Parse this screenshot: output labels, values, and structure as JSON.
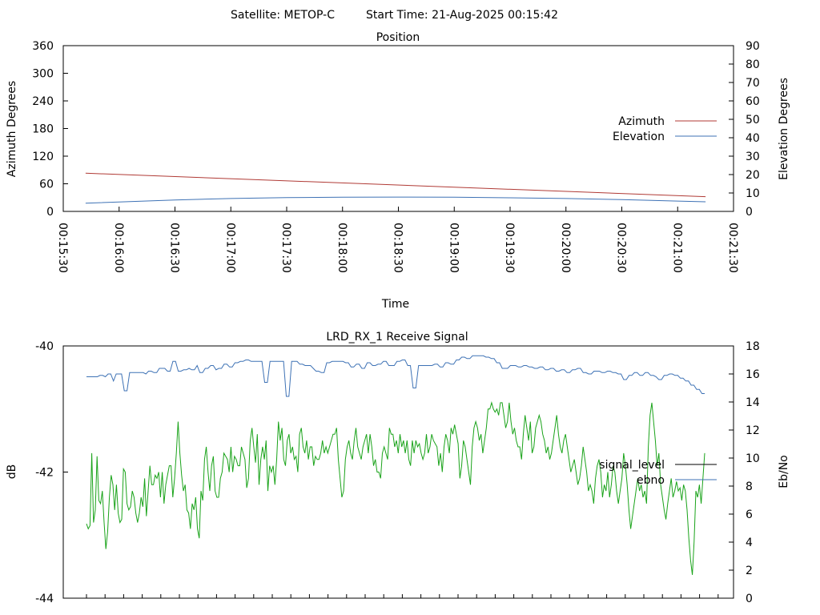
{
  "header": {
    "satellite": "Satellite: METOP-C",
    "start_time": "Start Time: 21-Aug-2025 00:15:42"
  },
  "colors": {
    "azimuth": "#b03a35",
    "elevation": "#3e72b5",
    "signal_level": "#000000",
    "ebno_line": "#3e72b5",
    "signal_series": "#1aa31a"
  },
  "chart_data": [
    {
      "type": "line",
      "title": "Position",
      "xlabel": "Time",
      "ylabel": "Azimuth Degrees",
      "y2label": "Elevation Degrees",
      "ylim": [
        0,
        360
      ],
      "y2lim": [
        0,
        90
      ],
      "yticks": [
        "0",
        "60",
        "120",
        "180",
        "240",
        "300",
        "360"
      ],
      "y2ticks": [
        "0",
        "10",
        "20",
        "30",
        "40",
        "50",
        "60",
        "70",
        "80",
        "90"
      ],
      "xticks": [
        "00:15:30",
        "00:16:00",
        "00:16:30",
        "00:17:00",
        "00:17:30",
        "00:18:00",
        "00:18:30",
        "00:19:00",
        "00:19:30",
        "00:20:00",
        "00:20:30",
        "00:21:00",
        "00:21:30"
      ],
      "xlim_seconds": [
        930,
        1290
      ],
      "legend_position": "right",
      "series": [
        {
          "name": "Azimuth",
          "axis": "y",
          "x": [
            "00:15:42",
            "00:21:15"
          ],
          "values": [
            83,
            32
          ]
        },
        {
          "name": "Elevation",
          "axis": "y2",
          "x": [
            "00:15:42",
            "00:16:30",
            "00:17:00",
            "00:17:30",
            "00:18:00",
            "00:18:30",
            "00:19:00",
            "00:19:30",
            "00:20:00",
            "00:20:30",
            "00:21:00",
            "00:21:15"
          ],
          "values": [
            4.5,
            6.2,
            7.0,
            7.5,
            7.7,
            7.8,
            7.7,
            7.4,
            7.0,
            6.4,
            5.6,
            5.2
          ]
        }
      ]
    },
    {
      "type": "line",
      "title": "LRD_RX_1 Receive Signal",
      "ylabel": "dB",
      "y2label": "Eb/No",
      "ylim": [
        -44,
        -40
      ],
      "y2lim": [
        0,
        18
      ],
      "yticks": [
        "-44",
        "-42",
        "-40"
      ],
      "y2ticks": [
        "0",
        "2",
        "4",
        "6",
        "8",
        "10",
        "12",
        "14",
        "16",
        "18"
      ],
      "legend_position": "right",
      "legend": [
        {
          "name": "signal_level"
        },
        {
          "name": "ebno"
        }
      ],
      "series": [
        {
          "name": "ebno",
          "axis": "y2",
          "values": [
            15.8,
            15.8,
            15.8,
            15.8,
            15.8,
            15.9,
            15.9,
            15.8,
            16.0,
            16.0,
            15.5,
            16.0,
            16.0,
            16.0,
            14.8,
            14.8,
            16.1,
            16.1,
            16.1,
            16.1,
            16.1,
            16.1,
            16.0,
            16.2,
            16.2,
            16.1,
            16.1,
            16.4,
            16.4,
            16.4,
            16.2,
            16.2,
            16.9,
            16.9,
            16.2,
            16.2,
            16.3,
            16.3,
            16.4,
            16.3,
            16.3,
            16.6,
            16.1,
            16.1,
            16.4,
            16.4,
            16.6,
            16.6,
            16.3,
            16.4,
            16.4,
            16.7,
            16.7,
            16.5,
            16.5,
            16.8,
            16.8,
            16.9,
            16.9,
            17.0,
            17.0,
            16.9,
            16.9,
            16.9,
            16.9,
            16.9,
            15.4,
            15.4,
            16.9,
            16.9,
            16.9,
            16.9,
            16.9,
            16.9,
            14.4,
            14.4,
            16.9,
            16.9,
            16.9,
            16.7,
            16.7,
            16.6,
            16.6,
            16.6,
            16.4,
            16.2,
            16.2,
            16.1,
            16.1,
            16.8,
            16.8,
            16.9,
            16.9,
            16.9,
            16.9,
            16.9,
            16.8,
            16.8,
            16.5,
            16.5,
            16.7,
            16.7,
            16.4,
            16.4,
            16.8,
            16.8,
            16.6,
            16.6,
            16.7,
            16.7,
            16.9,
            16.9,
            16.6,
            16.6,
            16.6,
            16.9,
            16.9,
            17.0,
            17.0,
            16.6,
            16.6,
            15.0,
            15.0,
            16.6,
            16.6,
            16.6,
            16.6,
            16.6,
            16.6,
            16.7,
            16.7,
            16.5,
            16.5,
            16.8,
            16.8,
            16.7,
            16.7,
            17.0,
            17.0,
            17.2,
            17.2,
            17.1,
            17.1,
            17.3,
            17.3,
            17.3,
            17.3,
            17.3,
            17.2,
            17.2,
            17.1,
            17.1,
            16.8,
            16.8,
            16.4,
            16.4,
            16.4,
            16.6,
            16.6,
            16.6,
            16.5,
            16.5,
            16.6,
            16.6,
            16.5,
            16.5,
            16.4,
            16.4,
            16.5,
            16.5,
            16.3,
            16.3,
            16.4,
            16.4,
            16.2,
            16.2,
            16.3,
            16.3,
            16.1,
            16.1,
            16.3,
            16.3,
            16.4,
            16.4,
            16.1,
            16.1,
            16.0,
            16.0,
            16.2,
            16.2,
            16.2,
            16.1,
            16.1,
            16.2,
            16.2,
            16.1,
            16.1,
            16.0,
            16.0,
            15.6,
            15.6,
            15.9,
            15.9,
            16.1,
            16.1,
            15.9,
            15.9,
            16.1,
            16.1,
            15.9,
            15.9,
            15.8,
            15.6,
            15.6,
            15.9,
            15.9,
            16.0,
            16.0,
            15.9,
            15.9,
            15.7,
            15.7,
            15.5,
            15.5,
            15.2,
            15.2,
            14.9,
            14.9,
            14.6,
            14.6
          ]
        },
        {
          "name": "signal",
          "axis": "y",
          "values": [
            -42.82,
            -42.9,
            -42.85,
            -41.7,
            -42.8,
            -42.6,
            -41.75,
            -42.45,
            -42.5,
            -42.3,
            -42.8,
            -43.22,
            -42.95,
            -42.4,
            -42.05,
            -42.2,
            -42.6,
            -42.2,
            -42.65,
            -42.8,
            -42.75,
            -41.95,
            -42.0,
            -42.5,
            -42.6,
            -42.55,
            -42.3,
            -42.4,
            -42.65,
            -42.8,
            -42.65,
            -42.4,
            -42.55,
            -42.1,
            -42.7,
            -42.3,
            -41.9,
            -42.2,
            -42.2,
            -42.05,
            -42.1,
            -42.0,
            -42.4,
            -42.0,
            -42.5,
            -42.2,
            -42.05,
            -41.9,
            -41.9,
            -42.4,
            -42.1,
            -41.7,
            -41.2,
            -41.7,
            -42.05,
            -42.3,
            -42.2,
            -42.6,
            -42.65,
            -42.9,
            -42.5,
            -42.6,
            -42.4,
            -42.9,
            -43.05,
            -42.3,
            -42.45,
            -41.8,
            -41.6,
            -42.0,
            -42.3,
            -41.9,
            -41.75,
            -42.3,
            -42.4,
            -42.4,
            -42.1,
            -42.0,
            -41.7,
            -41.75,
            -41.8,
            -42.0,
            -41.6,
            -42.0,
            -41.75,
            -41.8,
            -41.9,
            -41.9,
            -41.6,
            -41.7,
            -41.8,
            -42.25,
            -42.1,
            -41.5,
            -41.3,
            -41.6,
            -41.85,
            -41.4,
            -42.2,
            -41.8,
            -41.6,
            -41.8,
            -41.5,
            -42.3,
            -41.9,
            -42.0,
            -41.9,
            -42.2,
            -41.8,
            -41.2,
            -41.5,
            -41.3,
            -41.8,
            -41.9,
            -41.5,
            -41.4,
            -41.7,
            -41.6,
            -41.8,
            -41.75,
            -42.0,
            -41.4,
            -41.3,
            -41.6,
            -41.7,
            -41.5,
            -41.8,
            -41.6,
            -41.6,
            -41.9,
            -41.75,
            -41.8,
            -41.8,
            -41.7,
            -41.5,
            -41.7,
            -41.6,
            -41.7,
            -41.6,
            -41.5,
            -41.4,
            -41.4,
            -41.3,
            -41.8,
            -42.1,
            -42.4,
            -42.3,
            -41.8,
            -41.6,
            -41.5,
            -41.7,
            -41.8,
            -41.5,
            -41.3,
            -41.6,
            -41.7,
            -41.8,
            -41.6,
            -41.5,
            -41.4,
            -41.7,
            -41.4,
            -41.6,
            -41.9,
            -41.8,
            -42.0,
            -42.0,
            -42.1,
            -41.7,
            -41.6,
            -41.7,
            -41.8,
            -41.3,
            -41.4,
            -41.4,
            -41.6,
            -41.5,
            -41.7,
            -41.4,
            -41.6,
            -41.5,
            -41.7,
            -41.5,
            -41.8,
            -41.9,
            -41.5,
            -41.7,
            -41.5,
            -41.6,
            -41.55,
            -41.7,
            -41.8,
            -41.7,
            -41.4,
            -41.7,
            -41.6,
            -41.4,
            -41.5,
            -41.55,
            -41.6,
            -41.9,
            -41.7,
            -42.0,
            -41.6,
            -41.4,
            -41.5,
            -41.7,
            -41.3,
            -41.4,
            -41.25,
            -41.4,
            -41.55,
            -42.1,
            -41.9,
            -41.5,
            -41.6,
            -41.8,
            -42.0,
            -42.2,
            -41.6,
            -41.3,
            -41.2,
            -41.3,
            -41.5,
            -41.4,
            -41.7,
            -41.5,
            -41.3,
            -41.0,
            -41.0,
            -40.9,
            -41.0,
            -41.05,
            -41.0,
            -41.1,
            -40.9,
            -40.9,
            -41.1,
            -41.3,
            -41.2,
            -40.9,
            -41.2,
            -41.4,
            -41.3,
            -41.5,
            -41.6,
            -41.6,
            -41.8,
            -41.4,
            -41.1,
            -41.3,
            -41.5,
            -41.2,
            -41.7,
            -41.6,
            -41.3,
            -41.2,
            -41.1,
            -41.2,
            -41.4,
            -41.5,
            -41.7,
            -41.6,
            -41.8,
            -41.7,
            -41.5,
            -41.3,
            -41.1,
            -41.4,
            -41.6,
            -41.7,
            -41.5,
            -41.4,
            -41.6,
            -41.8,
            -42.0,
            -41.9,
            -41.8,
            -42.0,
            -42.2,
            -42.1,
            -41.9,
            -41.6,
            -41.8,
            -42.0,
            -42.3,
            -42.2,
            -42.3,
            -42.5,
            -42.1,
            -41.9,
            -41.8,
            -42.0,
            -42.4,
            -42.2,
            -42.3,
            -42.0,
            -42.4,
            -42.2,
            -41.9,
            -42.0,
            -42.3,
            -42.5,
            -42.3,
            -42.1,
            -41.7,
            -41.9,
            -42.2,
            -42.6,
            -42.9,
            -42.7,
            -42.5,
            -42.3,
            -42.1,
            -42.3,
            -42.2,
            -42.4,
            -42.3,
            -42.5,
            -41.6,
            -41.1,
            -40.9,
            -41.2,
            -41.5,
            -41.9,
            -41.7,
            -42.2,
            -42.4,
            -42.6,
            -42.75,
            -42.5,
            -42.3,
            -42.1,
            -42.4,
            -42.3,
            -42.15,
            -42.3,
            -42.25,
            -42.45,
            -42.2,
            -42.3,
            -42.6,
            -43.05,
            -43.4,
            -43.63,
            -43.1,
            -42.3,
            -42.4,
            -42.2,
            -42.5,
            -42.1,
            -41.7
          ]
        }
      ]
    }
  ]
}
